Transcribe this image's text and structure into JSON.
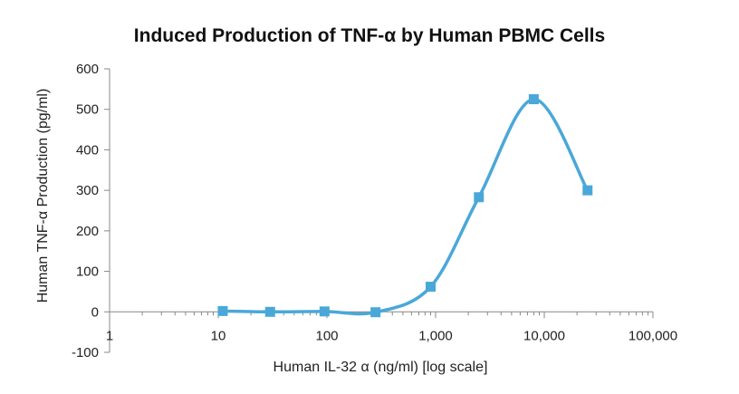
{
  "chart_data": {
    "type": "line",
    "title": "Induced Production of TNF-α by Human PBMC Cells",
    "xlabel": "Human IL-32 α (ng/ml) [log scale]",
    "ylabel": "Human TNF-α Production (pg/ml)",
    "x_scale": "log",
    "xlim": [
      1,
      100000
    ],
    "ylim": [
      -100,
      600
    ],
    "x_ticks": [
      1,
      10,
      100,
      1000,
      10000,
      100000
    ],
    "x_tick_labels": [
      "1",
      "10",
      "100",
      "1,000",
      "10,000",
      "100,000"
    ],
    "y_ticks": [
      -100,
      0,
      100,
      200,
      300,
      400,
      500,
      600
    ],
    "y_tick_labels": [
      "-100",
      "0",
      "100",
      "200",
      "300",
      "400",
      "500",
      "600"
    ],
    "grid": false,
    "legend": "none",
    "smooth": true,
    "marker": "square",
    "series": [
      {
        "color": "#4aa8d8",
        "x": [
          11,
          30,
          95,
          280,
          900,
          2500,
          8000,
          25000
        ],
        "y": [
          2,
          0,
          1,
          -1,
          62,
          283,
          525,
          300
        ]
      }
    ]
  }
}
